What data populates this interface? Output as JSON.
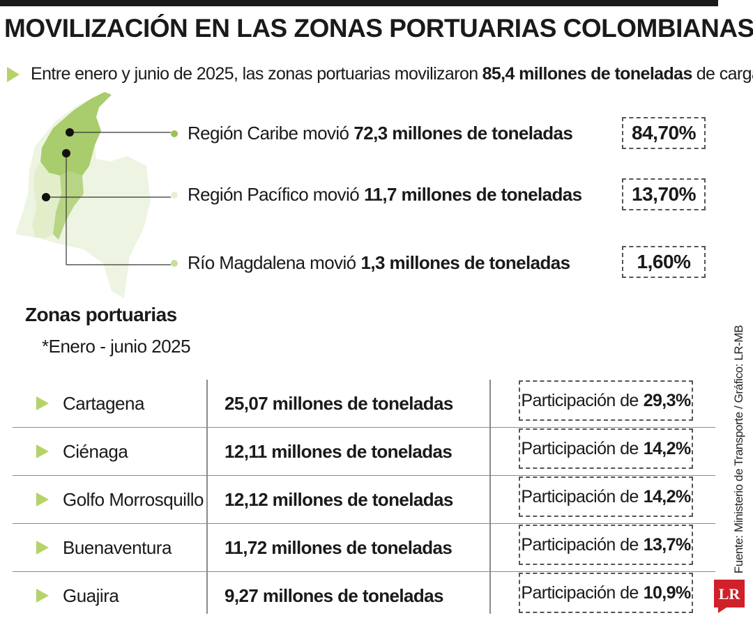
{
  "title": "MOVILIZACIÓN EN LAS ZONAS PORTUARIAS COLOMBIANAS",
  "intro": {
    "before": "Entre enero y junio de 2025, las zonas portuarias movilizaron",
    "bold": "85,4 millones de toneladas",
    "after": "de carga"
  },
  "regions": [
    {
      "prefix": "Región Caribe movió",
      "bold": "72,3 millones de toneladas",
      "percent": "84,70%",
      "color": "#9bc15a"
    },
    {
      "prefix": "Región Pacífico movió",
      "bold": "11,7 millones de toneladas",
      "percent": "13,70%",
      "color": "#e7f1d2"
    },
    {
      "prefix": "Río Magdalena movió",
      "bold": "1,3 millones de toneladas",
      "percent": "1,60%",
      "color": "#c8e09a"
    }
  ],
  "section": {
    "title": "Zonas portuarias",
    "subtitle": "*Enero - junio 2025"
  },
  "ports": [
    {
      "name": "Cartagena",
      "tons": "25,07 millones de toneladas",
      "share_label": "Participación de",
      "share": "29,3%"
    },
    {
      "name": "Ciénaga",
      "tons": "12,11 millones de toneladas",
      "share_label": "Participación de",
      "share": "14,2%"
    },
    {
      "name": "Golfo Morrosquillo",
      "tons": "12,12 millones de toneladas",
      "share_label": "Participación de",
      "share": "14,2%"
    },
    {
      "name": "Buenaventura",
      "tons": "11,72 millones de toneladas",
      "share_label": "Participación de",
      "share": "13,7%"
    },
    {
      "name": "Guajira",
      "tons": "9,27 millones de toneladas",
      "share_label": "Participación de",
      "share": "10,9%"
    }
  ],
  "source": "Fuente: Ministerio de Transporte / Gráfico: LR-MB",
  "logo": "LR",
  "colors": {
    "accent": "#b5d36a",
    "map_light": "#eef4e2",
    "map_green": "#a9cc6c",
    "logo_red": "#d0202a"
  }
}
